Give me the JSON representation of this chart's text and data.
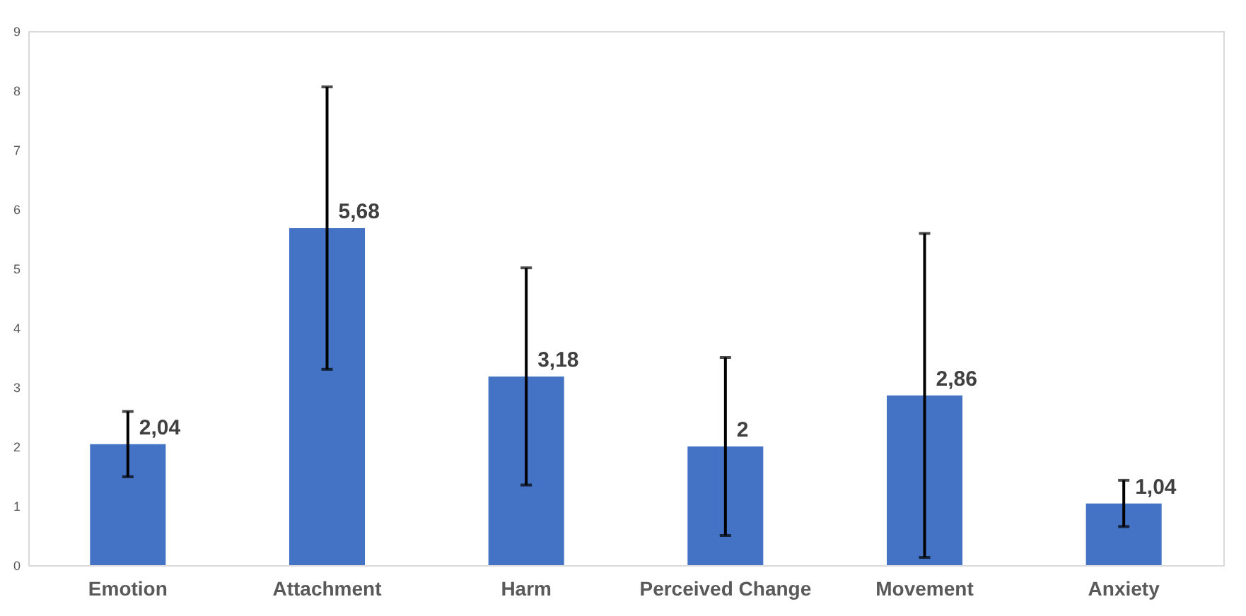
{
  "chart_data": {
    "type": "bar",
    "categories": [
      "Emotion",
      "Attachment",
      "Harm",
      "Perceived Change",
      "Movement",
      "Anxiety"
    ],
    "values": [
      2.04,
      5.68,
      3.18,
      2,
      2.86,
      1.04
    ],
    "errors": [
      0.55,
      2.38,
      1.83,
      1.5,
      2.73,
      0.39
    ],
    "value_labels": [
      "2,04",
      "5,68",
      "3,18",
      "2",
      "2,86",
      "1,04"
    ],
    "color": "#4472c4",
    "ylim": [
      0,
      9
    ],
    "yticks": [
      0,
      1,
      2,
      3,
      4,
      5,
      6,
      7,
      8,
      9
    ],
    "grid": false
  }
}
